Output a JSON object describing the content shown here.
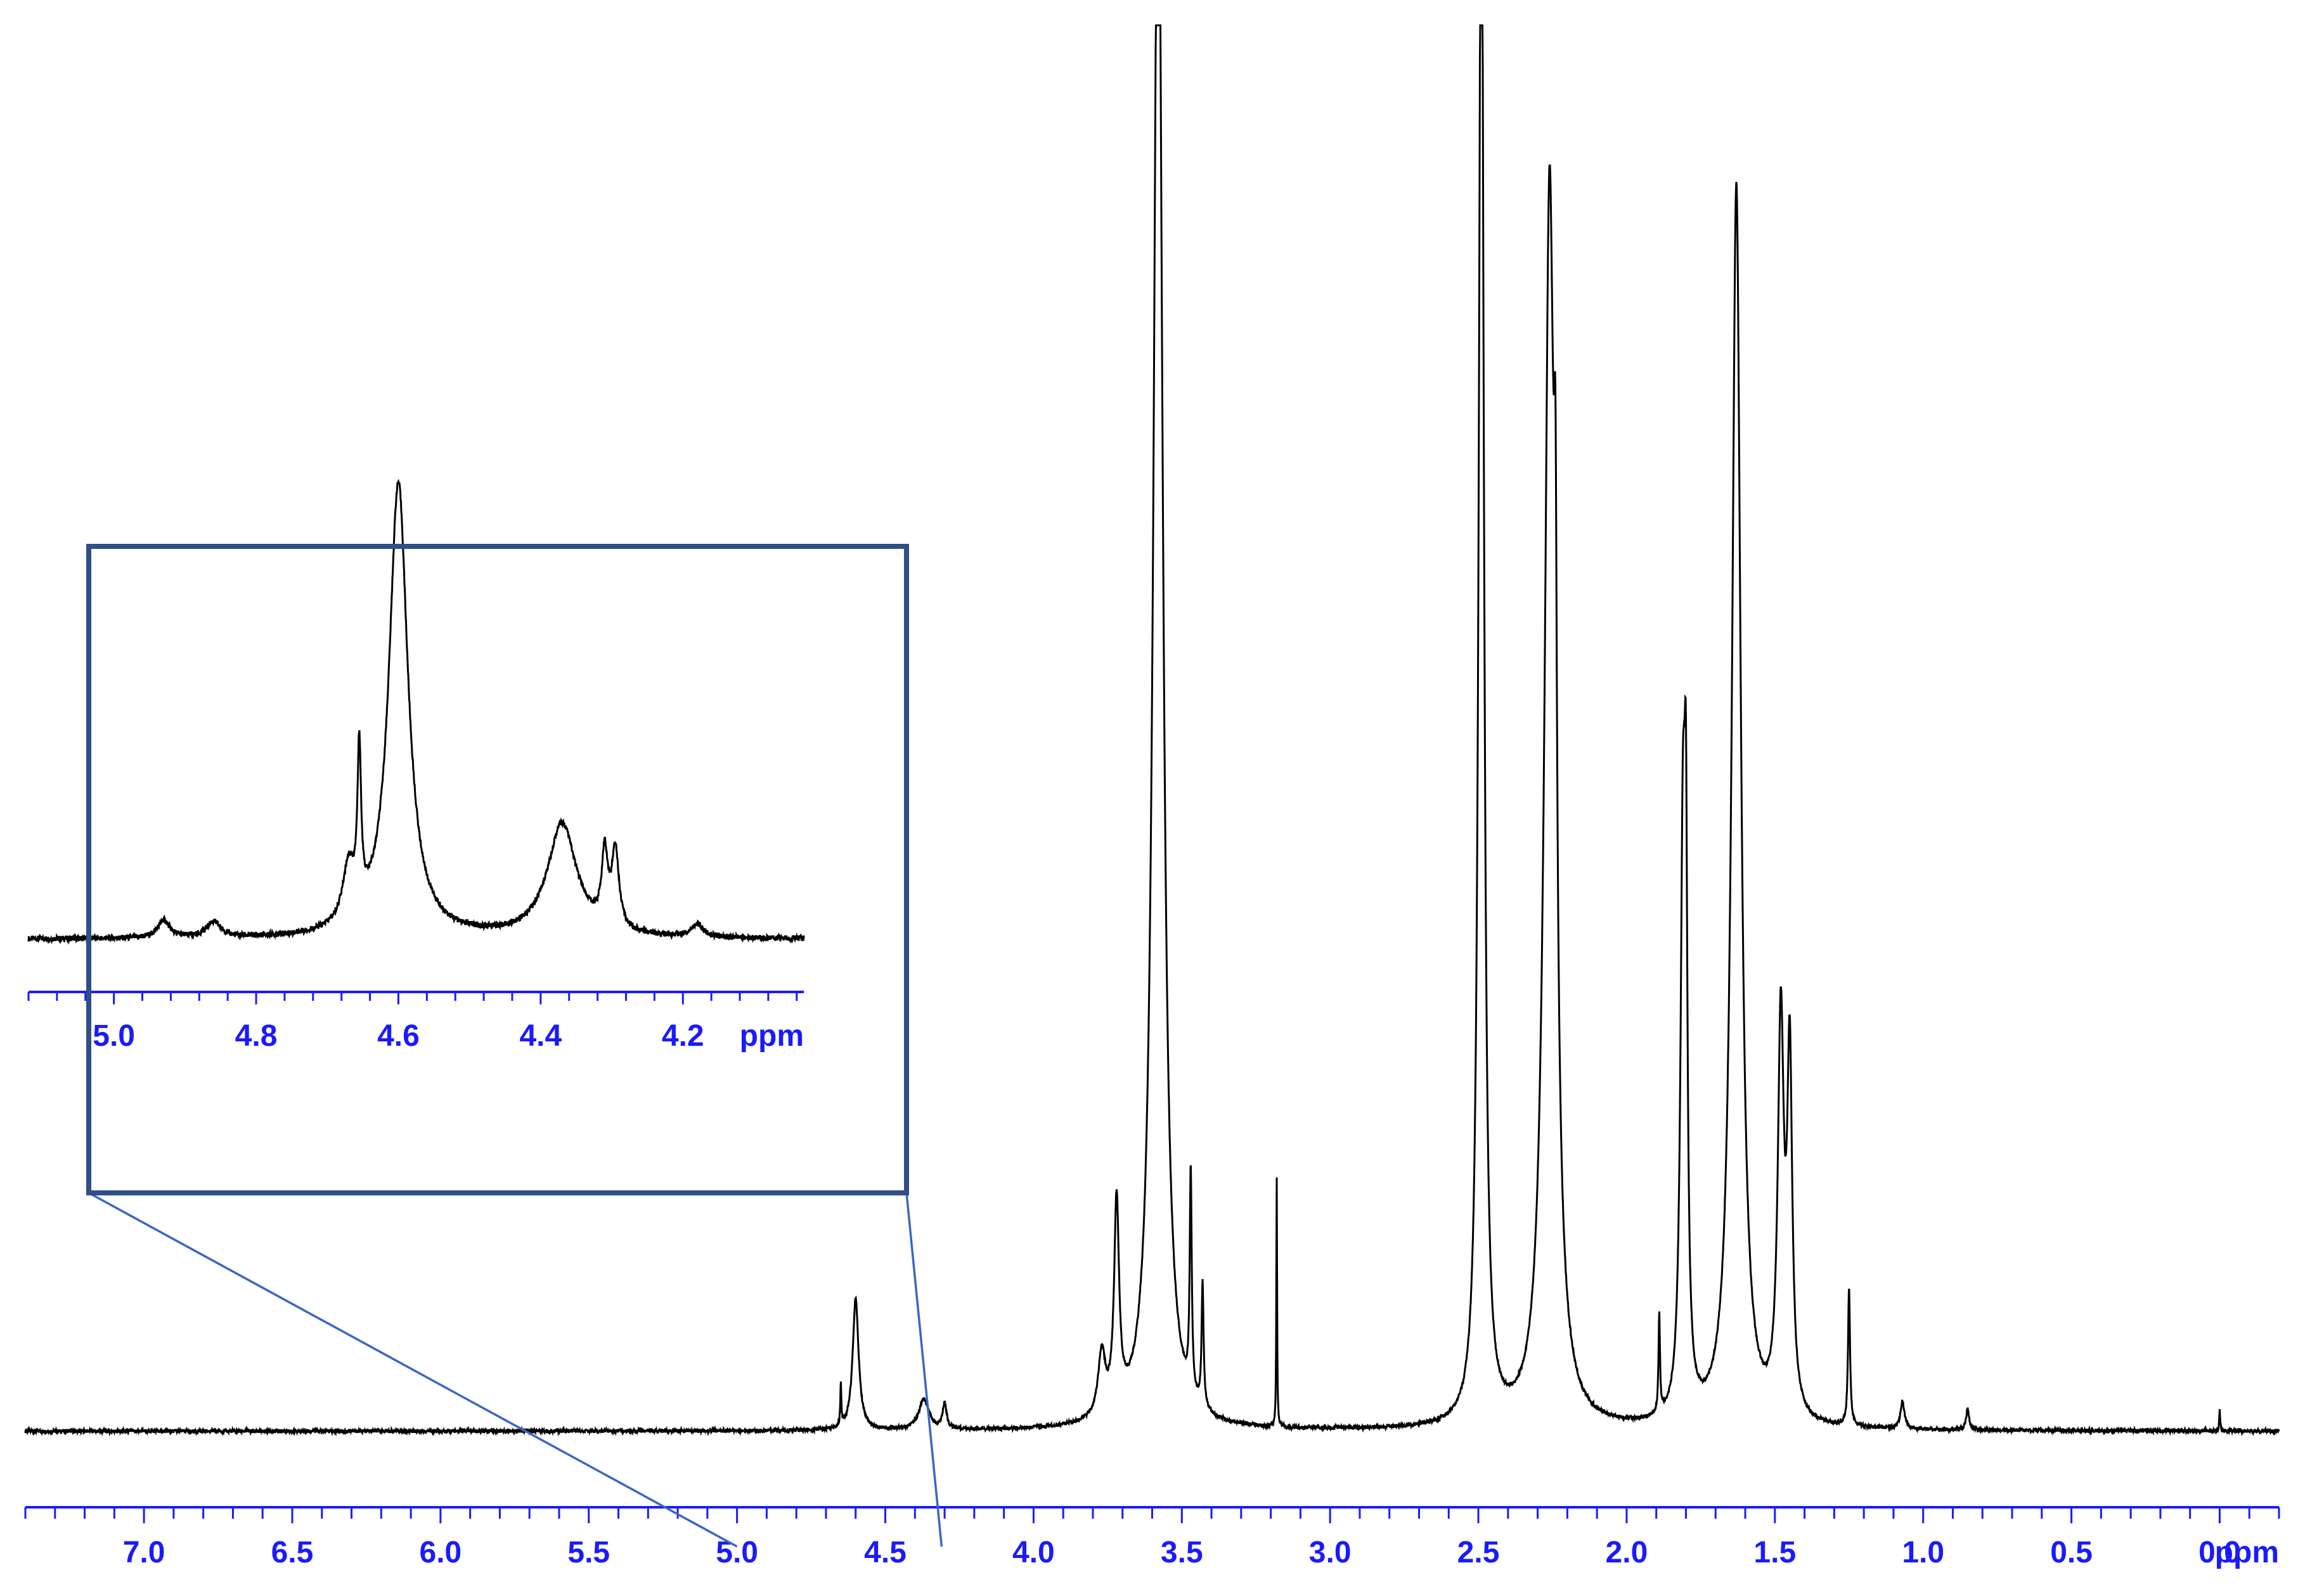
{
  "chart_data": [
    {
      "type": "line",
      "title": "",
      "xlabel": "ppm",
      "ylabel": "",
      "x_reversed": true,
      "xlim": [
        7.4,
        -0.2
      ],
      "xticks": [
        "7.0",
        "6.5",
        "6.0",
        "5.5",
        "5.0",
        "4.5",
        "4.0",
        "3.5",
        "3.0",
        "2.5",
        "2.0",
        "1.5",
        "1.0",
        "0.5",
        "0.0"
      ],
      "xtick_values": [
        7.0,
        6.5,
        6.0,
        5.5,
        5.0,
        4.5,
        4.0,
        3.5,
        3.0,
        2.5,
        2.0,
        1.5,
        1.0,
        0.5,
        0.0
      ],
      "ylim": [
        0,
        1
      ],
      "grid": false,
      "series": [
        {
          "peaks": [
            {
              "x": 4.6,
              "height": 0.095,
              "width": 0.012
            },
            {
              "x": 4.65,
              "height": 0.03,
              "width": 0.002
            },
            {
              "x": 4.37,
              "height": 0.022,
              "width": 0.02
            },
            {
              "x": 4.3,
              "height": 0.018,
              "width": 0.008
            },
            {
              "x": 3.77,
              "height": 0.045,
              "width": 0.015
            },
            {
              "x": 3.72,
              "height": 0.15,
              "width": 0.01
            },
            {
              "x": 3.58,
              "height": 1.2,
              "width": 0.018
            },
            {
              "x": 3.47,
              "height": 0.16,
              "width": 0.004
            },
            {
              "x": 3.43,
              "height": 0.09,
              "width": 0.004
            },
            {
              "x": 3.18,
              "height": 0.18,
              "width": 0.0015
            },
            {
              "x": 2.49,
              "height": 1.2,
              "width": 0.01
            },
            {
              "x": 2.26,
              "height": 0.88,
              "width": 0.02
            },
            {
              "x": 2.24,
              "height": 0.3,
              "width": 0.006
            },
            {
              "x": 1.81,
              "height": 0.4,
              "width": 0.01
            },
            {
              "x": 1.8,
              "height": 0.3,
              "width": 0.006
            },
            {
              "x": 1.63,
              "height": 0.89,
              "width": 0.018
            },
            {
              "x": 1.48,
              "height": 0.28,
              "width": 0.012
            },
            {
              "x": 1.45,
              "height": 0.25,
              "width": 0.01
            },
            {
              "x": 1.25,
              "height": 0.1,
              "width": 0.004
            },
            {
              "x": 1.89,
              "height": 0.07,
              "width": 0.003
            },
            {
              "x": 1.07,
              "height": 0.02,
              "width": 0.008
            },
            {
              "x": 0.85,
              "height": 0.015,
              "width": 0.006
            },
            {
              "x": 0.0,
              "height": 0.015,
              "width": 0.002
            }
          ]
        }
      ]
    },
    {
      "type": "line",
      "title": "",
      "xlabel": "ppm",
      "ylabel": "",
      "inset": true,
      "x_reversed": true,
      "xlim": [
        5.12,
        4.03
      ],
      "xticks": [
        "5.0",
        "4.8",
        "4.6",
        "4.4",
        "4.2"
      ],
      "xtick_values": [
        5.0,
        4.8,
        4.6,
        4.4,
        4.2
      ],
      "ylim": [
        0,
        1
      ],
      "grid": false,
      "series": [
        {
          "peaks": [
            {
              "x": 4.6,
              "height": 0.64,
              "width": 0.016
            },
            {
              "x": 4.655,
              "height": 0.22,
              "width": 0.003
            },
            {
              "x": 4.67,
              "height": 0.08,
              "width": 0.01
            },
            {
              "x": 4.37,
              "height": 0.16,
              "width": 0.025
            },
            {
              "x": 4.31,
              "height": 0.1,
              "width": 0.005
            },
            {
              "x": 4.295,
              "height": 0.11,
              "width": 0.006
            },
            {
              "x": 4.93,
              "height": 0.025,
              "width": 0.01
            },
            {
              "x": 4.86,
              "height": 0.022,
              "width": 0.012
            },
            {
              "x": 4.18,
              "height": 0.018,
              "width": 0.01
            }
          ]
        }
      ]
    }
  ],
  "colors": {
    "spectrum": "#000000",
    "axis": "#1a1aff",
    "tick_label": "#1a1aff",
    "inset_frame": "#2f4f86",
    "zoom_lines": "#3a67c4"
  }
}
